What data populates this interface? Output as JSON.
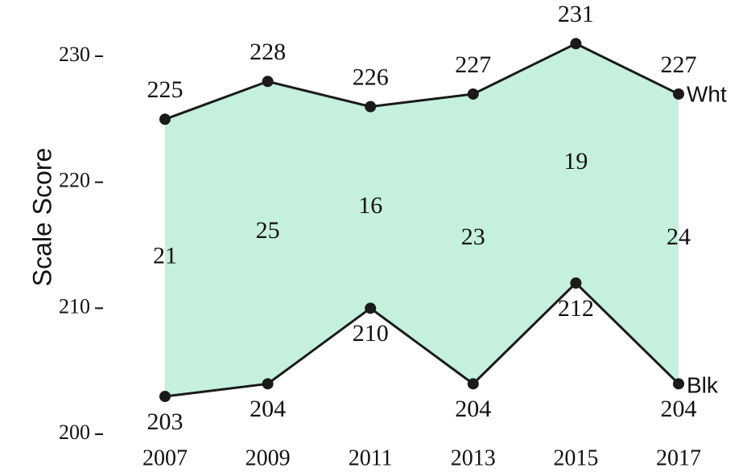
{
  "chart_data": {
    "type": "line",
    "y_label": "Scale Score",
    "categories": [
      "2007",
      "2009",
      "2011",
      "2013",
      "2015",
      "2017"
    ],
    "series": [
      {
        "name": "Wht",
        "color": "#1a1a1a",
        "values": [
          225,
          228,
          226,
          227,
          231,
          227
        ]
      },
      {
        "name": "Blk",
        "color": "#1a1a1a",
        "values": [
          203,
          204,
          210,
          204,
          212,
          204
        ]
      }
    ],
    "gaps": [
      21,
      25,
      16,
      23,
      19,
      24
    ],
    "fill_color": "#c4f0dc",
    "ylim": [
      199,
      232
    ],
    "yticks": [
      200,
      210,
      220,
      230
    ]
  }
}
